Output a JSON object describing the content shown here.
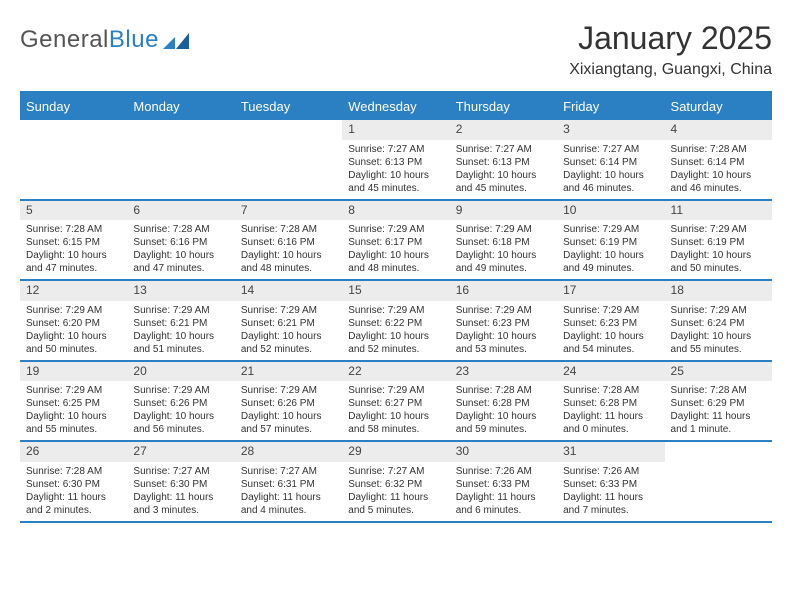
{
  "brand": {
    "name_part1": "General",
    "name_part2": "Blue"
  },
  "title": "January 2025",
  "location": "Xixiangtang, Guangxi, China",
  "colors": {
    "accent": "#2b7fc3",
    "header_text": "#ffffff",
    "daynum_bg": "#ececec",
    "text": "#333333",
    "bg": "#ffffff"
  },
  "typography": {
    "title_fontsize": 32,
    "location_fontsize": 16,
    "dow_fontsize": 13,
    "daynum_fontsize": 12,
    "body_fontsize": 10
  },
  "calendar": {
    "type": "table",
    "days_of_week": [
      "Sunday",
      "Monday",
      "Tuesday",
      "Wednesday",
      "Thursday",
      "Friday",
      "Saturday"
    ],
    "weeks": [
      [
        null,
        null,
        null,
        {
          "n": "1",
          "sunrise": "7:27 AM",
          "sunset": "6:13 PM",
          "daylight": "10 hours and 45 minutes."
        },
        {
          "n": "2",
          "sunrise": "7:27 AM",
          "sunset": "6:13 PM",
          "daylight": "10 hours and 45 minutes."
        },
        {
          "n": "3",
          "sunrise": "7:27 AM",
          "sunset": "6:14 PM",
          "daylight": "10 hours and 46 minutes."
        },
        {
          "n": "4",
          "sunrise": "7:28 AM",
          "sunset": "6:14 PM",
          "daylight": "10 hours and 46 minutes."
        }
      ],
      [
        {
          "n": "5",
          "sunrise": "7:28 AM",
          "sunset": "6:15 PM",
          "daylight": "10 hours and 47 minutes."
        },
        {
          "n": "6",
          "sunrise": "7:28 AM",
          "sunset": "6:16 PM",
          "daylight": "10 hours and 47 minutes."
        },
        {
          "n": "7",
          "sunrise": "7:28 AM",
          "sunset": "6:16 PM",
          "daylight": "10 hours and 48 minutes."
        },
        {
          "n": "8",
          "sunrise": "7:29 AM",
          "sunset": "6:17 PM",
          "daylight": "10 hours and 48 minutes."
        },
        {
          "n": "9",
          "sunrise": "7:29 AM",
          "sunset": "6:18 PM",
          "daylight": "10 hours and 49 minutes."
        },
        {
          "n": "10",
          "sunrise": "7:29 AM",
          "sunset": "6:19 PM",
          "daylight": "10 hours and 49 minutes."
        },
        {
          "n": "11",
          "sunrise": "7:29 AM",
          "sunset": "6:19 PM",
          "daylight": "10 hours and 50 minutes."
        }
      ],
      [
        {
          "n": "12",
          "sunrise": "7:29 AM",
          "sunset": "6:20 PM",
          "daylight": "10 hours and 50 minutes."
        },
        {
          "n": "13",
          "sunrise": "7:29 AM",
          "sunset": "6:21 PM",
          "daylight": "10 hours and 51 minutes."
        },
        {
          "n": "14",
          "sunrise": "7:29 AM",
          "sunset": "6:21 PM",
          "daylight": "10 hours and 52 minutes."
        },
        {
          "n": "15",
          "sunrise": "7:29 AM",
          "sunset": "6:22 PM",
          "daylight": "10 hours and 52 minutes."
        },
        {
          "n": "16",
          "sunrise": "7:29 AM",
          "sunset": "6:23 PM",
          "daylight": "10 hours and 53 minutes."
        },
        {
          "n": "17",
          "sunrise": "7:29 AM",
          "sunset": "6:23 PM",
          "daylight": "10 hours and 54 minutes."
        },
        {
          "n": "18",
          "sunrise": "7:29 AM",
          "sunset": "6:24 PM",
          "daylight": "10 hours and 55 minutes."
        }
      ],
      [
        {
          "n": "19",
          "sunrise": "7:29 AM",
          "sunset": "6:25 PM",
          "daylight": "10 hours and 55 minutes."
        },
        {
          "n": "20",
          "sunrise": "7:29 AM",
          "sunset": "6:26 PM",
          "daylight": "10 hours and 56 minutes."
        },
        {
          "n": "21",
          "sunrise": "7:29 AM",
          "sunset": "6:26 PM",
          "daylight": "10 hours and 57 minutes."
        },
        {
          "n": "22",
          "sunrise": "7:29 AM",
          "sunset": "6:27 PM",
          "daylight": "10 hours and 58 minutes."
        },
        {
          "n": "23",
          "sunrise": "7:28 AM",
          "sunset": "6:28 PM",
          "daylight": "10 hours and 59 minutes."
        },
        {
          "n": "24",
          "sunrise": "7:28 AM",
          "sunset": "6:28 PM",
          "daylight": "11 hours and 0 minutes."
        },
        {
          "n": "25",
          "sunrise": "7:28 AM",
          "sunset": "6:29 PM",
          "daylight": "11 hours and 1 minute."
        }
      ],
      [
        {
          "n": "26",
          "sunrise": "7:28 AM",
          "sunset": "6:30 PM",
          "daylight": "11 hours and 2 minutes."
        },
        {
          "n": "27",
          "sunrise": "7:27 AM",
          "sunset": "6:30 PM",
          "daylight": "11 hours and 3 minutes."
        },
        {
          "n": "28",
          "sunrise": "7:27 AM",
          "sunset": "6:31 PM",
          "daylight": "11 hours and 4 minutes."
        },
        {
          "n": "29",
          "sunrise": "7:27 AM",
          "sunset": "6:32 PM",
          "daylight": "11 hours and 5 minutes."
        },
        {
          "n": "30",
          "sunrise": "7:26 AM",
          "sunset": "6:33 PM",
          "daylight": "11 hours and 6 minutes."
        },
        {
          "n": "31",
          "sunrise": "7:26 AM",
          "sunset": "6:33 PM",
          "daylight": "11 hours and 7 minutes."
        },
        null
      ]
    ]
  },
  "labels": {
    "sunrise": "Sunrise: ",
    "sunset": "Sunset: ",
    "daylight": "Daylight: "
  }
}
